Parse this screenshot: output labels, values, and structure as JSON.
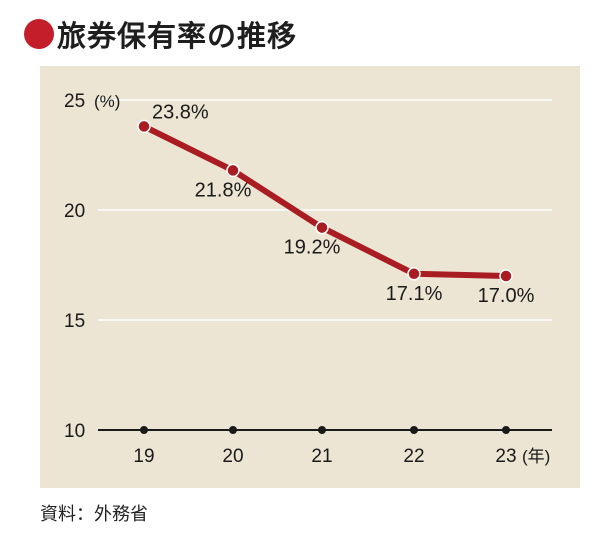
{
  "title": "旅券保有率の推移",
  "source": "資料：外務省",
  "colors": {
    "accent": "#c41e2a",
    "line": "#a81c22",
    "panel_bg": "#ece5d3",
    "grid": "#ffffff",
    "axis": "#1a1a1a"
  },
  "chart_data": {
    "type": "line",
    "x": [
      "19",
      "20",
      "21",
      "22",
      "23"
    ],
    "x_unit": "(年)",
    "y_unit": "(%)",
    "yticks": [
      25,
      20,
      15,
      10
    ],
    "ylim": [
      10,
      25
    ],
    "grid": true,
    "series": [
      {
        "values": [
          23.8,
          21.8,
          19.2,
          17.1,
          17.0
        ],
        "labels": [
          "23.8%",
          "21.8%",
          "19.2%",
          "17.1%",
          "17.0%"
        ]
      }
    ]
  }
}
